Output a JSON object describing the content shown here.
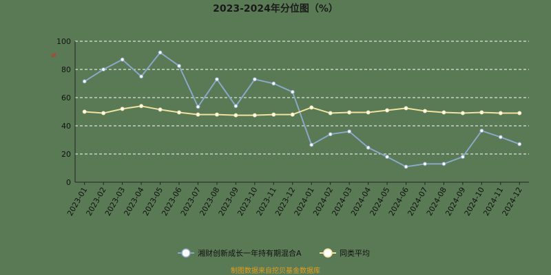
{
  "chart_data": {
    "type": "line",
    "title": "2023-2024年分位图（%）",
    "ylabel_mark": "≠",
    "source": "制图数据来自挖贝基金数据库",
    "ylim": [
      0,
      100
    ],
    "yticks": [
      0,
      20,
      40,
      60,
      80,
      100
    ],
    "grid": true,
    "legend_position": "bottom",
    "categories": [
      "2023-01",
      "2023-02",
      "2023-03",
      "2023-04",
      "2023-05",
      "2023-06",
      "2023-07",
      "2023-08",
      "2023-09",
      "2023-10",
      "2023-11",
      "2023-12",
      "2024-01",
      "2024-02",
      "2024-03",
      "2024-04",
      "2024-05",
      "2024-06",
      "2024-07",
      "2024-08",
      "2024-09",
      "2024-10",
      "2024-11",
      "2024-12"
    ],
    "series": [
      {
        "name": "湘财创新成长一年持有期混合A",
        "color": "#8aa8c8",
        "values": [
          71.5,
          80,
          87,
          75,
          92,
          82.5,
          53.5,
          73,
          54,
          73,
          70,
          64,
          26.5,
          34,
          36,
          24.5,
          18,
          11,
          13,
          13,
          18,
          36.5,
          32,
          27
        ]
      },
      {
        "name": "同类平均",
        "color": "#f0e2a0",
        "values": [
          50,
          49,
          52,
          54,
          51.5,
          49.5,
          48,
          48,
          47.5,
          47.5,
          48,
          48,
          53,
          49,
          49.5,
          49.5,
          51,
          52.5,
          50.5,
          49.5,
          49,
          49.5,
          49,
          49
        ]
      }
    ]
  }
}
